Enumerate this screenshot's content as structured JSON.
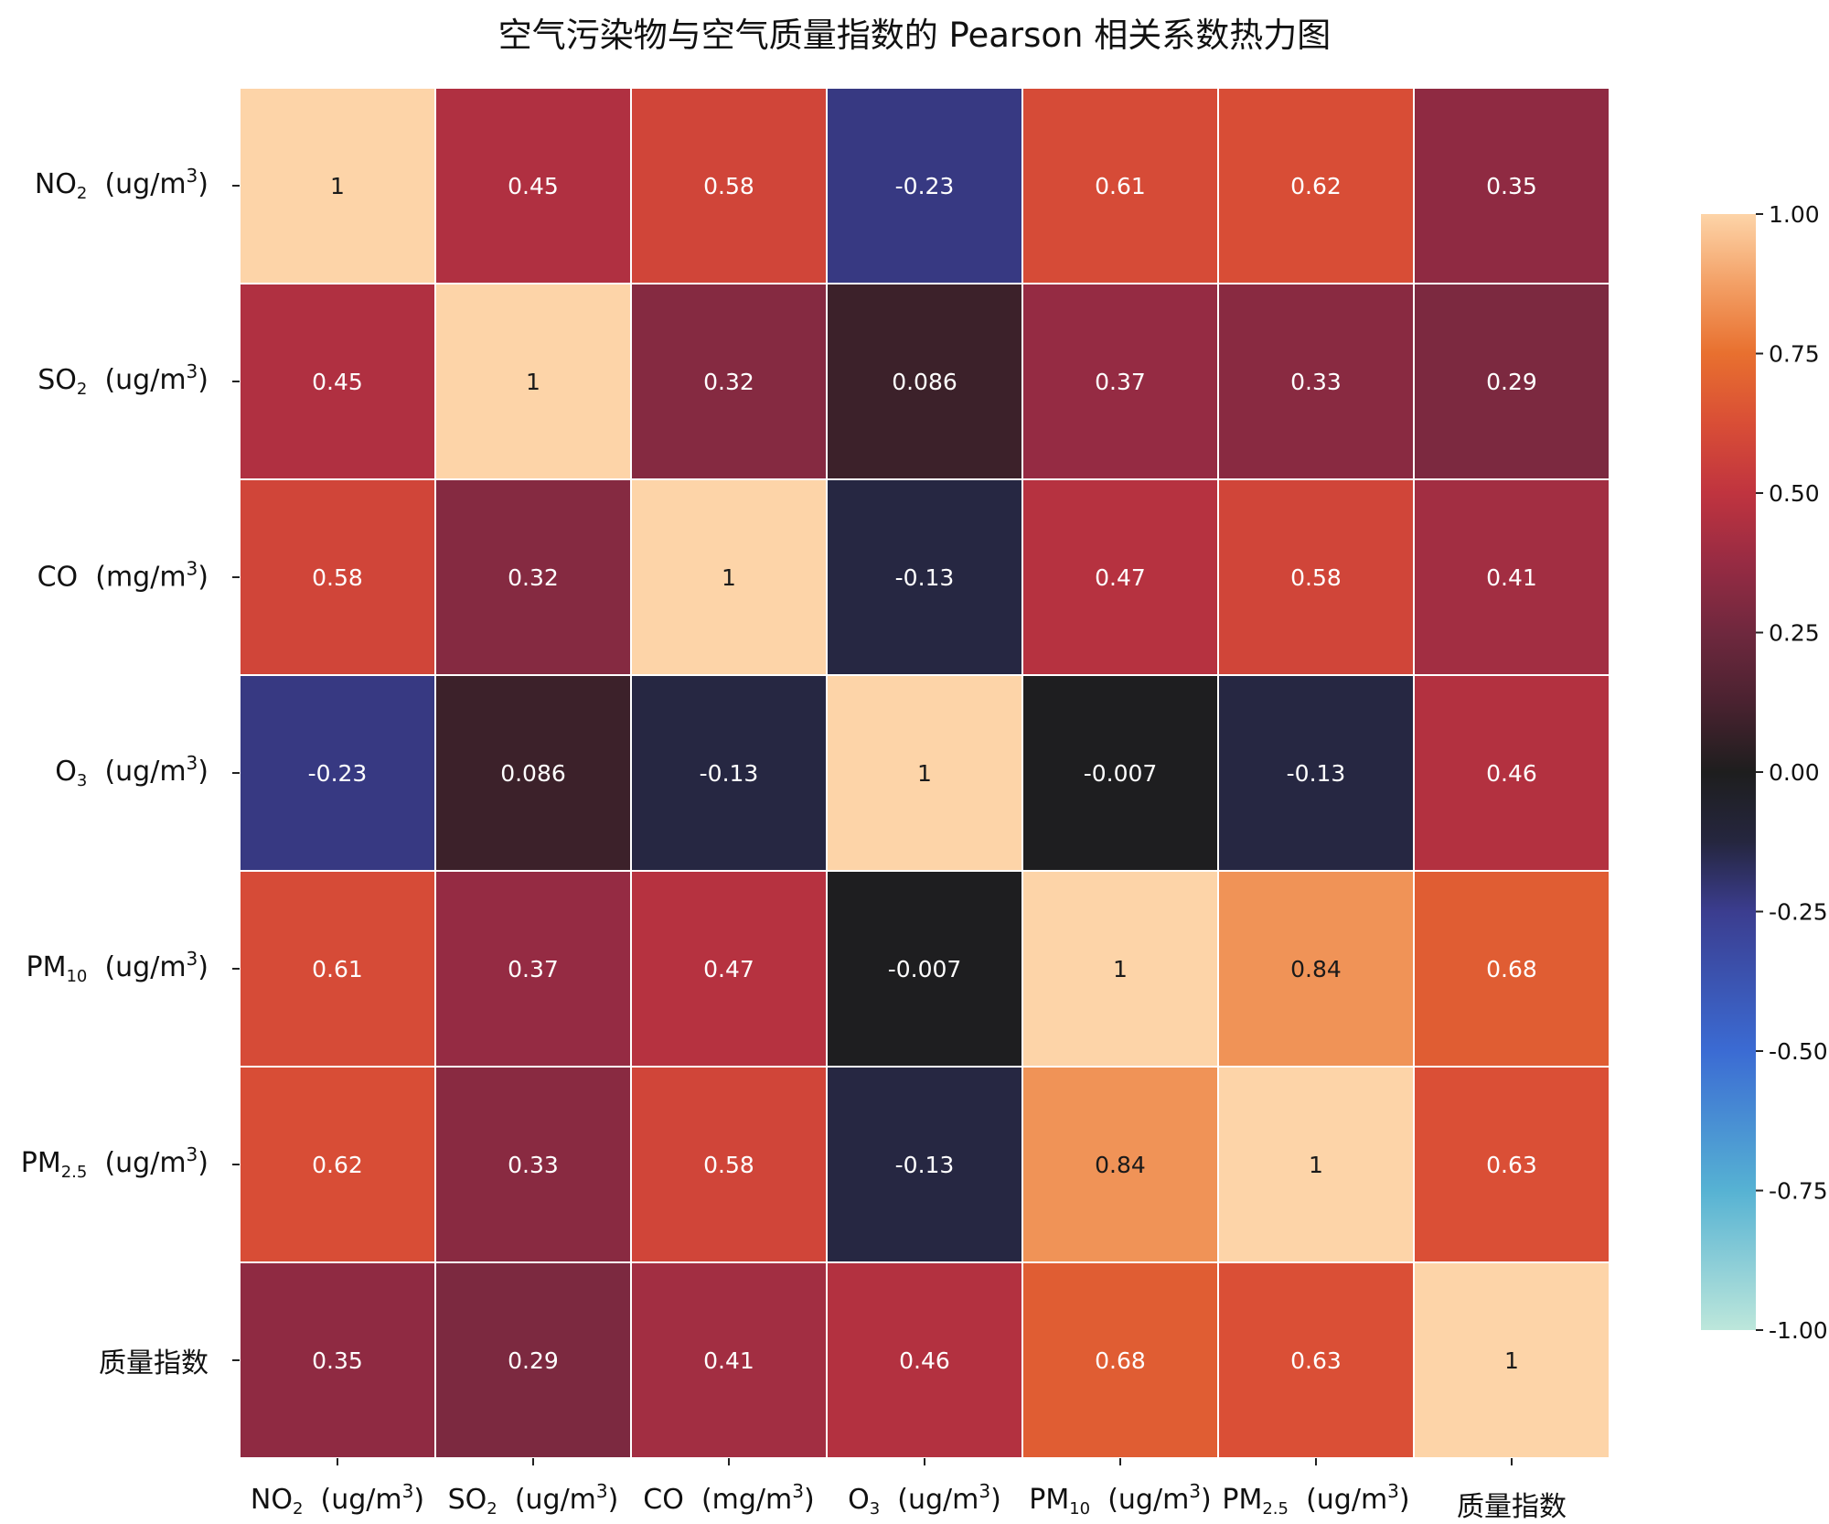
{
  "chart_data": {
    "type": "heatmap",
    "title": "空气污染物与空气质量指数的 Pearson 相关系数热力图",
    "row_labels": [
      {
        "base": "NO",
        "sub": "2",
        "unit_pre": "(ug/m",
        "unit_sup": "3",
        "unit_post": ")"
      },
      {
        "base": "SO",
        "sub": "2",
        "unit_pre": "(ug/m",
        "unit_sup": "3",
        "unit_post": ")"
      },
      {
        "base": "CO",
        "sub": "",
        "unit_pre": "(mg/m",
        "unit_sup": "3",
        "unit_post": ")"
      },
      {
        "base": "O",
        "sub": "3",
        "unit_pre": "(ug/m",
        "unit_sup": "3",
        "unit_post": ")"
      },
      {
        "base": "PM",
        "sub": "10",
        "unit_pre": "(ug/m",
        "unit_sup": "3",
        "unit_post": ")"
      },
      {
        "base": "PM",
        "sub": "2.5",
        "unit_pre": "(ug/m",
        "unit_sup": "3",
        "unit_post": ")"
      },
      {
        "base": "质量指数",
        "sub": "",
        "unit_pre": "",
        "unit_sup": "",
        "unit_post": ""
      }
    ],
    "col_labels": [
      {
        "base": "NO",
        "sub": "2",
        "unit_pre": "(ug/m",
        "unit_sup": "3",
        "unit_post": ")"
      },
      {
        "base": "SO",
        "sub": "2",
        "unit_pre": "(ug/m",
        "unit_sup": "3",
        "unit_post": ")"
      },
      {
        "base": "CO",
        "sub": "",
        "unit_pre": "(mg/m",
        "unit_sup": "3",
        "unit_post": ")"
      },
      {
        "base": "O",
        "sub": "3",
        "unit_pre": "(ug/m",
        "unit_sup": "3",
        "unit_post": ")"
      },
      {
        "base": "PM",
        "sub": "10",
        "unit_pre": "(ug/m",
        "unit_sup": "3",
        "unit_post": ")"
      },
      {
        "base": "PM",
        "sub": "2.5",
        "unit_pre": "(ug/m",
        "unit_sup": "3",
        "unit_post": ")"
      },
      {
        "base": "质量指数",
        "sub": "",
        "unit_pre": "",
        "unit_sup": "",
        "unit_post": ""
      }
    ],
    "values": [
      [
        1,
        0.45,
        0.58,
        -0.23,
        0.61,
        0.62,
        0.35
      ],
      [
        0.45,
        1,
        0.32,
        0.086,
        0.37,
        0.33,
        0.29
      ],
      [
        0.58,
        0.32,
        1,
        -0.13,
        0.47,
        0.58,
        0.41
      ],
      [
        -0.23,
        0.086,
        -0.13,
        1,
        -0.007,
        -0.13,
        0.46
      ],
      [
        0.61,
        0.37,
        0.47,
        -0.007,
        1,
        0.84,
        0.68
      ],
      [
        0.62,
        0.33,
        0.58,
        -0.13,
        0.84,
        1,
        0.63
      ],
      [
        0.35,
        0.29,
        0.41,
        0.46,
        0.68,
        0.63,
        1
      ]
    ],
    "cell_labels": [
      [
        "1",
        "0.45",
        "0.58",
        "-0.23",
        "0.61",
        "0.62",
        "0.35"
      ],
      [
        "0.45",
        "1",
        "0.32",
        "0.086",
        "0.37",
        "0.33",
        "0.29"
      ],
      [
        "0.58",
        "0.32",
        "1",
        "-0.13",
        "0.47",
        "0.58",
        "0.41"
      ],
      [
        "-0.23",
        "0.086",
        "-0.13",
        "1",
        "-0.007",
        "-0.13",
        "0.46"
      ],
      [
        "0.61",
        "0.37",
        "0.47",
        "-0.007",
        "1",
        "0.84",
        "0.68"
      ],
      [
        "0.62",
        "0.33",
        "0.58",
        "-0.13",
        "0.84",
        "1",
        "0.63"
      ],
      [
        "0.35",
        "0.29",
        "0.41",
        "0.46",
        "0.68",
        "0.63",
        "1"
      ]
    ],
    "colorbar": {
      "range": [
        -1.0,
        1.0
      ],
      "ticks": [
        1.0,
        0.75,
        0.5,
        0.25,
        0.0,
        -0.25,
        -0.5,
        -0.75,
        -1.0
      ],
      "tick_labels": [
        "1.00",
        "0.75",
        "0.50",
        "0.25",
        "0.00",
        "-0.25",
        "-0.50",
        "-0.75",
        "-1.00"
      ],
      "colormap": "icefire",
      "color_stops": [
        {
          "v": -1.0,
          "c": "#bde7db"
        },
        {
          "v": -0.75,
          "c": "#56b2d3"
        },
        {
          "v": -0.5,
          "c": "#3b6bd3"
        },
        {
          "v": -0.25,
          "c": "#3b3d8f"
        },
        {
          "v": -0.125,
          "c": "#25263f"
        },
        {
          "v": 0.0,
          "c": "#1e1e1e"
        },
        {
          "v": 0.125,
          "c": "#4a2230"
        },
        {
          "v": 0.25,
          "c": "#6f283e"
        },
        {
          "v": 0.375,
          "c": "#972b43"
        },
        {
          "v": 0.5,
          "c": "#c0343f"
        },
        {
          "v": 0.625,
          "c": "#d94e36"
        },
        {
          "v": 0.75,
          "c": "#e8702f"
        },
        {
          "v": 0.875,
          "c": "#f3a066"
        },
        {
          "v": 1.0,
          "c": "#fdd4a8"
        }
      ]
    },
    "grid": true,
    "legend": "colorbar-right"
  }
}
